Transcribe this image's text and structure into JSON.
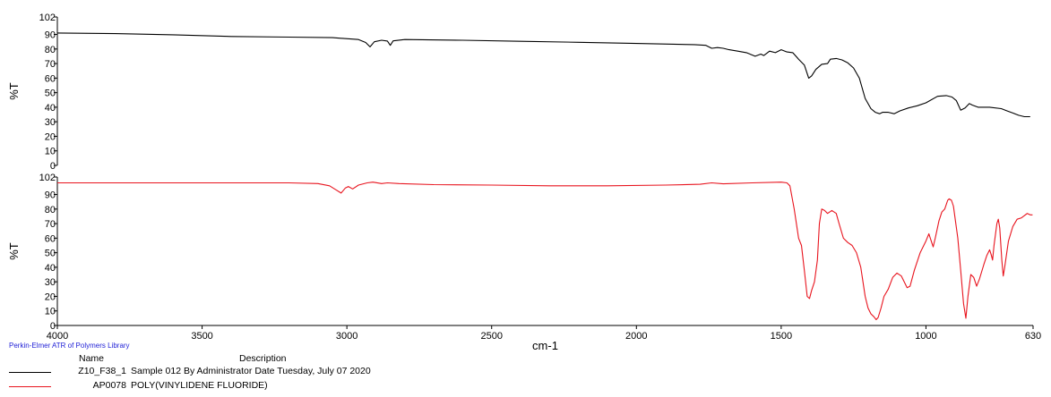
{
  "chart_data": [
    {
      "type": "line",
      "panel": "top",
      "ylabel": "%T",
      "xlabel": "cm-1",
      "xlim": [
        4000,
        630
      ],
      "x_reversed": true,
      "ylim": [
        0,
        102
      ],
      "yticks": [
        "0",
        "10",
        "20",
        "30",
        "40",
        "50",
        "60",
        "70",
        "80",
        "90",
        "102"
      ],
      "series": [
        {
          "name": "Z10_F38_1",
          "color": "#000000",
          "points": [
            [
              4000,
              91
            ],
            [
              3800,
              90.6
            ],
            [
              3600,
              89.8
            ],
            [
              3400,
              88.6
            ],
            [
              3200,
              88.2
            ],
            [
              3050,
              87.8
            ],
            [
              2960,
              86.5
            ],
            [
              2935,
              84.5
            ],
            [
              2920,
              81.5
            ],
            [
              2905,
              85
            ],
            [
              2880,
              86
            ],
            [
              2860,
              85.5
            ],
            [
              2850,
              82.5
            ],
            [
              2840,
              85.6
            ],
            [
              2800,
              86.5
            ],
            [
              2600,
              86
            ],
            [
              2400,
              85.3
            ],
            [
              2200,
              84.6
            ],
            [
              2000,
              83.8
            ],
            [
              1800,
              83
            ],
            [
              1760,
              82.5
            ],
            [
              1740,
              80.5
            ],
            [
              1720,
              81
            ],
            [
              1700,
              80.5
            ],
            [
              1680,
              79.5
            ],
            [
              1650,
              78.5
            ],
            [
              1620,
              77.5
            ],
            [
              1590,
              75
            ],
            [
              1570,
              76.5
            ],
            [
              1560,
              75.5
            ],
            [
              1540,
              78.5
            ],
            [
              1520,
              77.5
            ],
            [
              1500,
              79.5
            ],
            [
              1480,
              78
            ],
            [
              1460,
              77.5
            ],
            [
              1440,
              73
            ],
            [
              1420,
              69
            ],
            [
              1405,
              60
            ],
            [
              1395,
              61.5
            ],
            [
              1380,
              66
            ],
            [
              1360,
              69.5
            ],
            [
              1340,
              70
            ],
            [
              1330,
              73
            ],
            [
              1310,
              73.5
            ],
            [
              1290,
              72.5
            ],
            [
              1270,
              70.5
            ],
            [
              1250,
              67
            ],
            [
              1230,
              60
            ],
            [
              1210,
              46
            ],
            [
              1190,
              39
            ],
            [
              1175,
              36.5
            ],
            [
              1160,
              35.5
            ],
            [
              1150,
              36.5
            ],
            [
              1130,
              36.5
            ],
            [
              1110,
              35.5
            ],
            [
              1090,
              37.5
            ],
            [
              1060,
              39.5
            ],
            [
              1030,
              41
            ],
            [
              1000,
              43
            ],
            [
              960,
              47.5
            ],
            [
              930,
              48
            ],
            [
              910,
              47
            ],
            [
              895,
              44.5
            ],
            [
              880,
              38
            ],
            [
              865,
              39.5
            ],
            [
              850,
              42.5
            ],
            [
              840,
              41.5
            ],
            [
              820,
              40
            ],
            [
              780,
              40
            ],
            [
              740,
              39
            ],
            [
              720,
              37.5
            ],
            [
              700,
              36
            ],
            [
              680,
              34.5
            ],
            [
              660,
              33.5
            ],
            [
              640,
              33.5
            ]
          ]
        }
      ]
    },
    {
      "type": "line",
      "panel": "bottom",
      "ylabel": "%T",
      "xlabel": "cm-1",
      "xlim": [
        4000,
        630
      ],
      "x_reversed": true,
      "ylim": [
        0,
        102
      ],
      "xticks": [
        "4000",
        "3500",
        "3000",
        "2500",
        "2000",
        "1500",
        "1000",
        "630"
      ],
      "yticks": [
        "0",
        "10",
        "20",
        "30",
        "40",
        "50",
        "60",
        "70",
        "80",
        "90",
        "102"
      ],
      "series": [
        {
          "name": "AP0078",
          "color": "#e8141e",
          "points": [
            [
              4000,
              98
            ],
            [
              3700,
              98
            ],
            [
              3400,
              98
            ],
            [
              3200,
              98
            ],
            [
              3100,
              97.5
            ],
            [
              3060,
              96
            ],
            [
              3040,
              93.5
            ],
            [
              3020,
              91
            ],
            [
              3005,
              94.5
            ],
            [
              2995,
              95.5
            ],
            [
              2980,
              93.8
            ],
            [
              2960,
              96.5
            ],
            [
              2930,
              98
            ],
            [
              2910,
              98.5
            ],
            [
              2880,
              97.5
            ],
            [
              2860,
              98
            ],
            [
              2820,
              97.5
            ],
            [
              2700,
              96.8
            ],
            [
              2500,
              96.5
            ],
            [
              2300,
              96
            ],
            [
              2100,
              96
            ],
            [
              1900,
              96.5
            ],
            [
              1780,
              97
            ],
            [
              1740,
              98
            ],
            [
              1700,
              97.3
            ],
            [
              1600,
              98
            ],
            [
              1500,
              98.5
            ],
            [
              1480,
              98
            ],
            [
              1470,
              96
            ],
            [
              1455,
              80
            ],
            [
              1440,
              60
            ],
            [
              1430,
              55
            ],
            [
              1420,
              38
            ],
            [
              1410,
              20
            ],
            [
              1402,
              18.5
            ],
            [
              1395,
              24
            ],
            [
              1385,
              30
            ],
            [
              1375,
              45
            ],
            [
              1368,
              70
            ],
            [
              1360,
              80
            ],
            [
              1350,
              79
            ],
            [
              1340,
              77
            ],
            [
              1325,
              79
            ],
            [
              1310,
              77
            ],
            [
              1300,
              70
            ],
            [
              1285,
              60
            ],
            [
              1270,
              57
            ],
            [
              1255,
              55
            ],
            [
              1240,
              50
            ],
            [
              1225,
              40
            ],
            [
              1210,
              20
            ],
            [
              1200,
              12
            ],
            [
              1190,
              8
            ],
            [
              1180,
              6
            ],
            [
              1172,
              4
            ],
            [
              1165,
              5.5
            ],
            [
              1155,
              12
            ],
            [
              1145,
              20
            ],
            [
              1130,
              25
            ],
            [
              1115,
              33
            ],
            [
              1100,
              36
            ],
            [
              1085,
              34
            ],
            [
              1075,
              30
            ],
            [
              1065,
              26
            ],
            [
              1055,
              27
            ],
            [
              1040,
              38
            ],
            [
              1020,
              50
            ],
            [
              1000,
              58
            ],
            [
              990,
              63
            ],
            [
              985,
              60
            ],
            [
              975,
              54
            ],
            [
              968,
              60
            ],
            [
              955,
              72
            ],
            [
              945,
              78
            ],
            [
              935,
              80
            ],
            [
              925,
              86
            ],
            [
              920,
              87
            ],
            [
              912,
              86
            ],
            [
              905,
              82
            ],
            [
              890,
              60
            ],
            [
              880,
              38
            ],
            [
              870,
              15
            ],
            [
              862,
              5
            ],
            [
              855,
              20
            ],
            [
              845,
              35
            ],
            [
              835,
              33
            ],
            [
              825,
              27
            ],
            [
              815,
              32
            ],
            [
              800,
              42
            ],
            [
              790,
              48
            ],
            [
              780,
              52
            ],
            [
              775,
              49
            ],
            [
              770,
              45
            ],
            [
              765,
              55
            ],
            [
              755,
              70
            ],
            [
              750,
              73
            ],
            [
              745,
              67
            ],
            [
              738,
              45
            ],
            [
              733,
              34
            ],
            [
              728,
              40
            ],
            [
              715,
              58
            ],
            [
              700,
              68
            ],
            [
              685,
              73
            ],
            [
              670,
              74
            ],
            [
              650,
              77
            ],
            [
              640,
              76
            ],
            [
              632,
              76
            ]
          ]
        }
      ]
    }
  ],
  "footer": {
    "library": "Perkin-Elmer ATR of Polymers Library",
    "name_header": "Name",
    "description_header": "Description",
    "rows": [
      {
        "name": "Z10_F38_1",
        "description": "Sample 012 By Administrator Date Tuesday, July 07 2020",
        "color": "#000000"
      },
      {
        "name": "AP0078",
        "description": "POLY(VINYLIDENE FLUORIDE)",
        "color": "#e8141e"
      }
    ]
  }
}
